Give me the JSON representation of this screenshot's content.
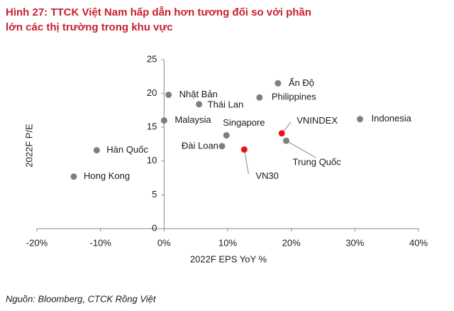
{
  "chart_data": {
    "type": "scatter",
    "title": "Hình 27: TTCK Việt Nam hấp dẫn hơn tương đối so với phần lớn các thị trường trong khu vực",
    "x_label": "2022F EPS YoY %",
    "y_label": "2022F P/E",
    "source": "Nguồn: Bloomberg, CTCK Rồng Việt",
    "points": [
      {
        "label": "Nhật Bản",
        "x": 0.7,
        "y": 19.8,
        "color": "#7f7f7f"
      },
      {
        "label": "Thái Lan",
        "x": 5.5,
        "y": 18.4,
        "color": "#7f7f7f"
      },
      {
        "label": "Malaysia",
        "x": 0,
        "y": 16.0,
        "color": "#7f7f7f"
      },
      {
        "label": "Singapore",
        "x": 9.8,
        "y": 13.8,
        "color": "#7f7f7f"
      },
      {
        "label": "Đài Loan",
        "x": 9.1,
        "y": 12.2,
        "color": "#7f7f7f"
      },
      {
        "label": "VN30",
        "x": 12.6,
        "y": 11.7,
        "color": "#e8141b"
      },
      {
        "label": "VNINDEX",
        "x": 18.5,
        "y": 14.1,
        "color": "#e8141b"
      },
      {
        "label": "Trung Quốc",
        "x": 19.2,
        "y": 13.0,
        "color": "#7f7f7f"
      },
      {
        "label": "Ấn Độ",
        "x": 17.9,
        "y": 21.5,
        "color": "#7f7f7f"
      },
      {
        "label": "Philippines",
        "x": 15.0,
        "y": 19.4,
        "color": "#7f7f7f"
      },
      {
        "label": "Indonesia",
        "x": 30.8,
        "y": 16.2,
        "color": "#7f7f7f"
      },
      {
        "label": "Hàn Quốc",
        "x": -10.6,
        "y": 11.6,
        "color": "#7f7f7f"
      },
      {
        "label": "Hong Kong",
        "x": -14.2,
        "y": 7.7,
        "color": "#7f7f7f"
      }
    ],
    "xlim": [
      -20,
      40
    ],
    "xticks": [
      {
        "value": -20,
        "label": "-20%"
      },
      {
        "value": -10,
        "label": "-10%"
      },
      {
        "value": 0,
        "label": "0%"
      },
      {
        "value": 10,
        "label": "10%"
      },
      {
        "value": 20,
        "label": "20%"
      },
      {
        "value": 30,
        "label": "30%"
      },
      {
        "value": 40,
        "label": "40%"
      }
    ],
    "ylim": [
      0,
      25
    ],
    "yticks": [
      0,
      5,
      10,
      15,
      20,
      25
    ]
  }
}
